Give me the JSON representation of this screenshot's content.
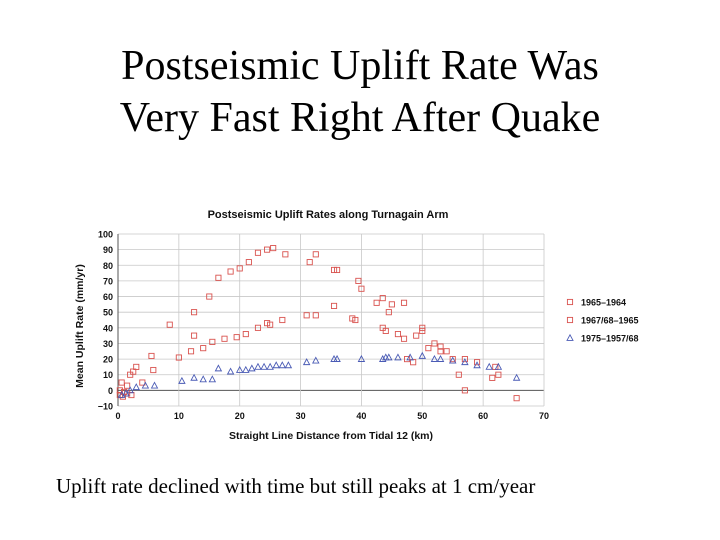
{
  "slide": {
    "title_line1": "Postseismic Uplift Rate Was",
    "title_line2": "Very Fast Right After Quake",
    "caption": "Uplift rate declined with time but still peaks at 1 cm/year"
  },
  "chart_data": {
    "type": "scatter",
    "title": "Postseismic Uplift Rates along Turnagain Arm",
    "xlabel": "Straight Line Distance from Tidal 12 (km)",
    "ylabel": "Mean Uplift Rate (mm/yr)",
    "xlim": [
      0,
      70
    ],
    "ylim": [
      -10,
      100
    ],
    "xticks": [
      "0",
      "10",
      "20",
      "30",
      "40",
      "50",
      "60",
      "70"
    ],
    "yticks": [
      "−10",
      "0",
      "10",
      "20",
      "30",
      "40",
      "50",
      "60",
      "70",
      "80",
      "90",
      "100"
    ],
    "grid": true,
    "legend_position": "right",
    "series": [
      {
        "name": "1965–1964",
        "marker": "square",
        "color": "#d9534f",
        "points": [
          [
            0.3,
            -3
          ],
          [
            0.6,
            5
          ],
          [
            1,
            -1
          ],
          [
            1.5,
            3
          ],
          [
            2,
            10
          ],
          [
            3,
            15
          ],
          [
            5.5,
            22
          ],
          [
            8.5,
            42
          ],
          [
            12.5,
            50
          ],
          [
            15,
            60
          ],
          [
            16.5,
            72
          ],
          [
            18.5,
            76
          ],
          [
            20,
            78
          ],
          [
            21.5,
            82
          ],
          [
            23,
            88
          ],
          [
            24.5,
            90
          ],
          [
            25.5,
            91
          ],
          [
            27.5,
            87
          ],
          [
            31.5,
            82
          ],
          [
            32.5,
            87
          ],
          [
            35.5,
            77
          ],
          [
            36,
            77
          ],
          [
            39.5,
            70
          ],
          [
            40,
            65
          ],
          [
            42.5,
            56
          ],
          [
            43.5,
            59
          ],
          [
            45,
            55
          ],
          [
            47,
            56
          ],
          [
            49,
            35
          ],
          [
            50,
            38
          ],
          [
            52,
            30
          ],
          [
            53,
            25
          ],
          [
            55,
            20
          ],
          [
            56,
            10
          ],
          [
            57,
            0
          ],
          [
            61.5,
            8
          ],
          [
            62.5,
            10
          ],
          [
            65.5,
            -5
          ]
        ]
      },
      {
        "name": "1967/68–1965",
        "marker": "square",
        "color": "#d9534f",
        "points": [
          [
            0.3,
            0
          ],
          [
            0.8,
            -4
          ],
          [
            1.5,
            -2
          ],
          [
            2.2,
            -3
          ],
          [
            2.5,
            12
          ],
          [
            4,
            5
          ],
          [
            5.8,
            13
          ],
          [
            10,
            21
          ],
          [
            12,
            25
          ],
          [
            12.5,
            35
          ],
          [
            14,
            27
          ],
          [
            15.5,
            31
          ],
          [
            17.5,
            33
          ],
          [
            19.5,
            34
          ],
          [
            21,
            36
          ],
          [
            23,
            40
          ],
          [
            24.5,
            43
          ],
          [
            25,
            42
          ],
          [
            27,
            45
          ],
          [
            31,
            48
          ],
          [
            32.5,
            48
          ],
          [
            35.5,
            54
          ],
          [
            38.5,
            46
          ],
          [
            39,
            45
          ],
          [
            43.5,
            40
          ],
          [
            44,
            38
          ],
          [
            44.5,
            50
          ],
          [
            46,
            36
          ],
          [
            47,
            33
          ],
          [
            47.5,
            20
          ],
          [
            48.5,
            18
          ],
          [
            50,
            40
          ],
          [
            51,
            27
          ],
          [
            53,
            28
          ],
          [
            54,
            25
          ],
          [
            57,
            20
          ],
          [
            59,
            18
          ],
          [
            62,
            15
          ]
        ]
      },
      {
        "name": "1975–1957/68",
        "marker": "triangle",
        "color": "#4a5bb5",
        "points": [
          [
            0.6,
            -3
          ],
          [
            1.3,
            -2
          ],
          [
            2,
            0
          ],
          [
            3,
            2
          ],
          [
            4.5,
            3
          ],
          [
            6,
            3
          ],
          [
            10.5,
            6
          ],
          [
            12.5,
            8
          ],
          [
            14,
            7
          ],
          [
            15.5,
            7
          ],
          [
            16.5,
            14
          ],
          [
            18.5,
            12
          ],
          [
            20,
            13
          ],
          [
            21,
            13
          ],
          [
            22,
            14
          ],
          [
            23,
            15
          ],
          [
            24,
            15
          ],
          [
            25,
            15
          ],
          [
            26,
            16
          ],
          [
            27,
            16
          ],
          [
            28,
            16
          ],
          [
            31,
            18
          ],
          [
            32.5,
            19
          ],
          [
            35.5,
            20
          ],
          [
            36,
            20
          ],
          [
            40,
            20
          ],
          [
            43.5,
            20
          ],
          [
            44,
            21
          ],
          [
            44.5,
            21
          ],
          [
            46,
            21
          ],
          [
            48,
            21
          ],
          [
            50,
            22
          ],
          [
            52,
            20
          ],
          [
            53,
            20
          ],
          [
            55,
            19
          ],
          [
            57,
            18
          ],
          [
            59,
            16
          ],
          [
            61,
            15
          ],
          [
            62.5,
            15
          ],
          [
            65.5,
            8
          ]
        ]
      }
    ]
  }
}
